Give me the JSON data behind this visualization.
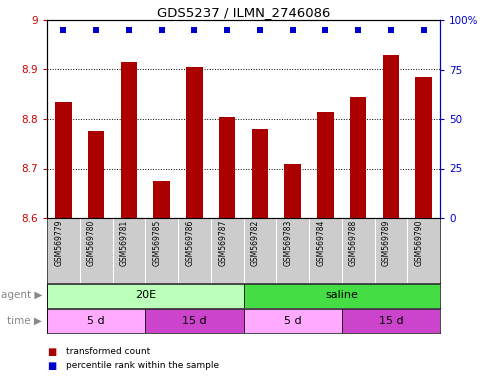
{
  "title": "GDS5237 / ILMN_2746086",
  "samples": [
    "GSM569779",
    "GSM569780",
    "GSM569781",
    "GSM569785",
    "GSM569786",
    "GSM569787",
    "GSM569782",
    "GSM569783",
    "GSM569784",
    "GSM569788",
    "GSM569789",
    "GSM569790"
  ],
  "bar_values": [
    8.835,
    8.775,
    8.915,
    8.675,
    8.905,
    8.805,
    8.78,
    8.71,
    8.815,
    8.845,
    8.93,
    8.885
  ],
  "percentile_values": [
    95,
    95,
    95,
    95,
    95,
    95,
    95,
    95,
    95,
    95,
    95,
    95
  ],
  "bar_color": "#AA0000",
  "percentile_color": "#0000CC",
  "ylim_left": [
    8.6,
    9.0
  ],
  "yticks_left": [
    8.6,
    8.7,
    8.8,
    8.9,
    9.0
  ],
  "yticklabels_left": [
    "8.6",
    "8.7",
    "8.8",
    "8.9",
    "9"
  ],
  "ylim_right": [
    0,
    100
  ],
  "yticks_right": [
    0,
    25,
    50,
    75,
    100
  ],
  "yticklabels_right": [
    "0",
    "25",
    "50",
    "75",
    "100%"
  ],
  "agent_groups": [
    {
      "label": "20E",
      "start": 0,
      "end": 6,
      "color": "#BBFFBB"
    },
    {
      "label": "saline",
      "start": 6,
      "end": 12,
      "color": "#44DD44"
    }
  ],
  "time_groups": [
    {
      "label": "5 d",
      "start": 0,
      "end": 3,
      "color": "#FFAAFF"
    },
    {
      "label": "15 d",
      "start": 3,
      "end": 6,
      "color": "#CC44CC"
    },
    {
      "label": "5 d",
      "start": 6,
      "end": 9,
      "color": "#FFAAFF"
    },
    {
      "label": "15 d",
      "start": 9,
      "end": 12,
      "color": "#CC44CC"
    }
  ],
  "legend_items": [
    {
      "label": "transformed count",
      "color": "#AA0000"
    },
    {
      "label": "percentile rank within the sample",
      "color": "#0000CC"
    }
  ],
  "tick_label_color_left": "#CC0000",
  "tick_label_color_right": "#0000CC",
  "background_color": "#FFFFFF",
  "plot_bg_color": "#FFFFFF",
  "sample_bg_color": "#CCCCCC",
  "agent_label": "agent",
  "time_label": "time"
}
